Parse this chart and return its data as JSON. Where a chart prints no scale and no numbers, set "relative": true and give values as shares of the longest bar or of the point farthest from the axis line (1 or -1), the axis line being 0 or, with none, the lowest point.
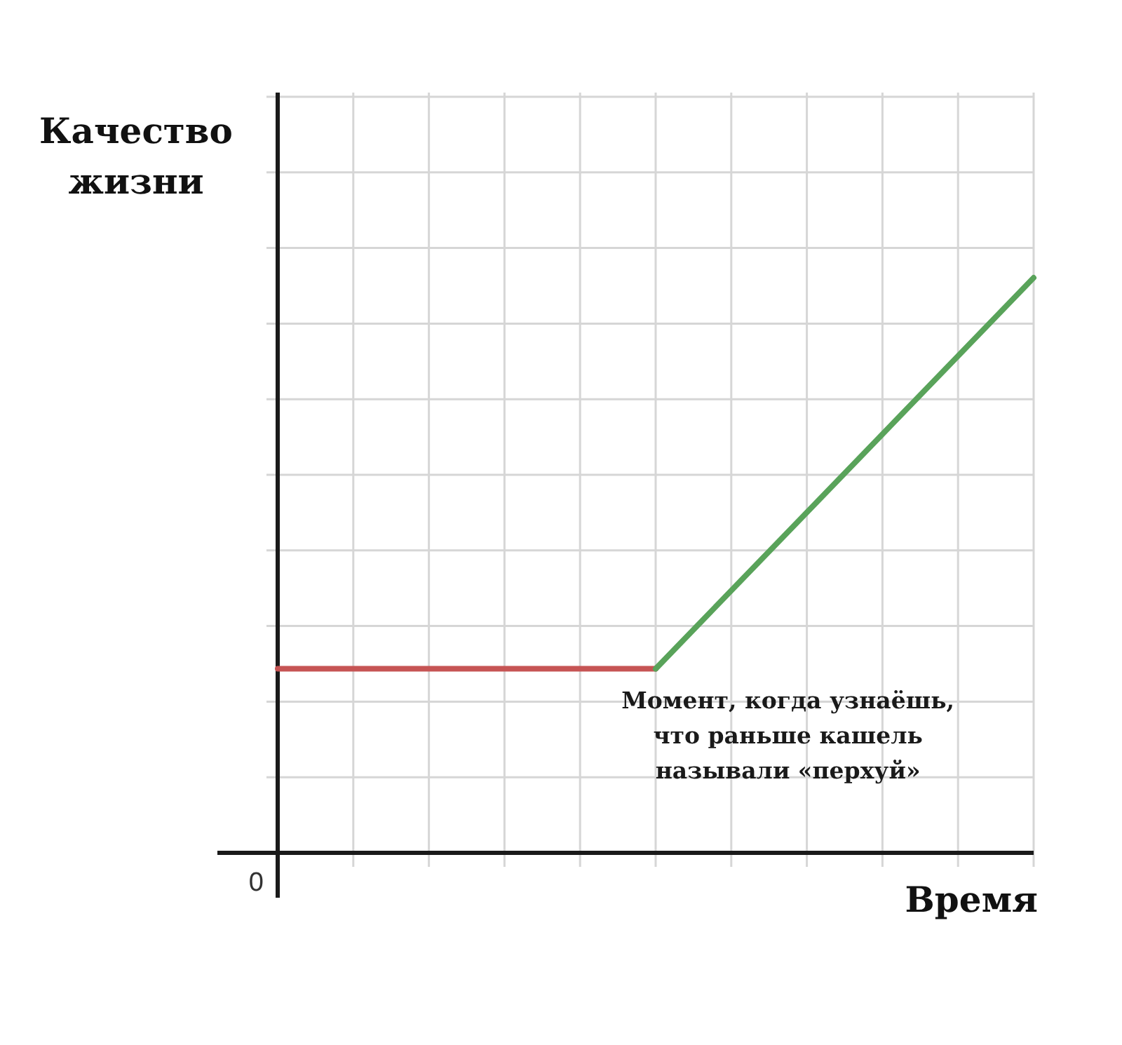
{
  "chart_data": {
    "type": "line",
    "relative": true,
    "xlabel": "Время",
    "ylabel": "Качество жизни",
    "categories": [
      null,
      null,
      null
    ],
    "series": [
      {
        "color": "#c65454",
        "values": [
          0.32,
          0.32,
          null
        ]
      },
      {
        "color": "#59a35a",
        "values": [
          null,
          0.32,
          1
        ]
      }
    ],
    "grid": true,
    "annotations": [
      "0",
      "Момент, когда узнаёшь, что раньше кашель называли «перхуй»"
    ]
  }
}
